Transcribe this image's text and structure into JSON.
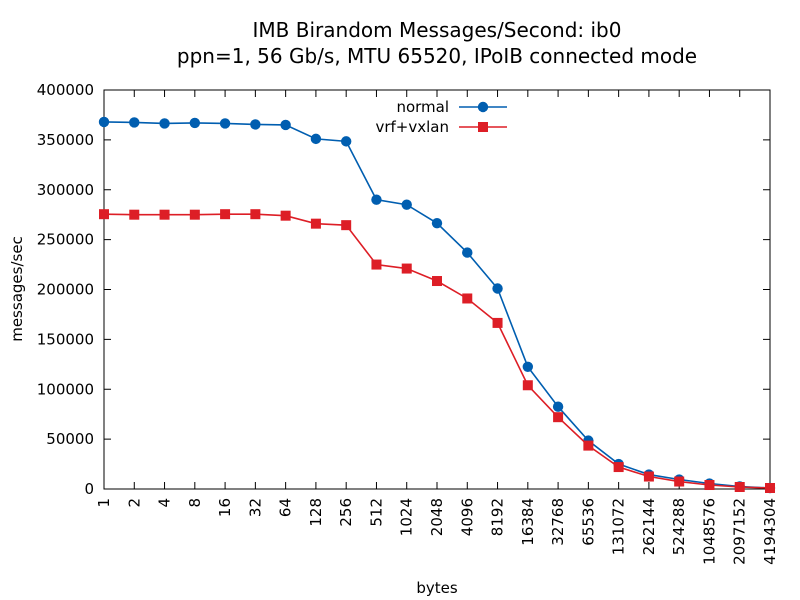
{
  "chart_data": {
    "type": "line",
    "title_line1": "IMB Birandom Messages/Second: ib0",
    "title_line2": "ppn=1, 56 Gb/s, MTU 65520, IPoIB connected mode",
    "xlabel": "bytes",
    "ylabel": "messages/sec",
    "ylim": [
      0,
      400000
    ],
    "yticks": [
      "0",
      "50000",
      "100000",
      "150000",
      "200000",
      "250000",
      "300000",
      "350000",
      "400000"
    ],
    "categories": [
      "1",
      "2",
      "4",
      "8",
      "16",
      "32",
      "64",
      "128",
      "256",
      "512",
      "1024",
      "2048",
      "4096",
      "8192",
      "16384",
      "32768",
      "65536",
      "131072",
      "262144",
      "524288",
      "1048576",
      "2097152",
      "4194304"
    ],
    "legend_position": "top-center",
    "grid": false,
    "series": [
      {
        "name": "normal",
        "color": "#005eb0",
        "marker": "circle",
        "values": [
          368000,
          367500,
          366500,
          367000,
          366500,
          365500,
          365000,
          351000,
          348500,
          290000,
          285000,
          266500,
          237000,
          201000,
          122500,
          82500,
          48500,
          25000,
          14500,
          9500,
          5500,
          2500,
          1000
        ]
      },
      {
        "name": "vrf+vxlan",
        "color": "#dd1e26",
        "marker": "square",
        "values": [
          275500,
          275000,
          275000,
          275000,
          275500,
          275500,
          274000,
          266000,
          264500,
          225000,
          221000,
          208500,
          191000,
          166500,
          104000,
          72000,
          43500,
          22000,
          12500,
          7500,
          4000,
          2000,
          1000
        ]
      }
    ]
  }
}
